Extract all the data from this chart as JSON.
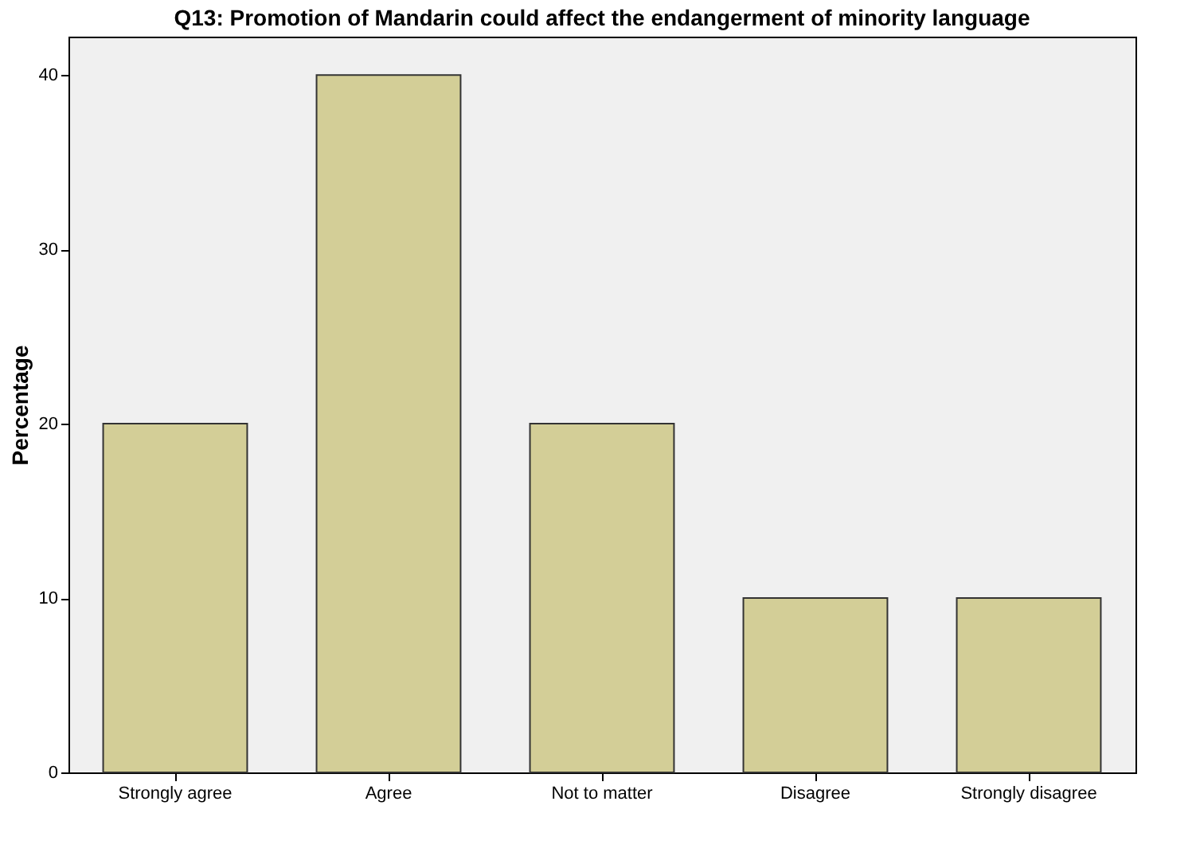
{
  "chart_data": {
    "type": "bar",
    "title": "Q13: Promotion of Mandarin could affect the endangerment of minority language",
    "ylabel": "Percentage",
    "categories": [
      "Strongly agree",
      "Agree",
      "Not to matter",
      "Disagree",
      "Strongly disagree"
    ],
    "values": [
      20,
      40,
      20,
      10,
      10
    ],
    "color": "#d3ce97",
    "ylim": [
      0,
      42.2
    ],
    "yticks": [
      0,
      10,
      20,
      30,
      40
    ],
    "grid": false
  }
}
